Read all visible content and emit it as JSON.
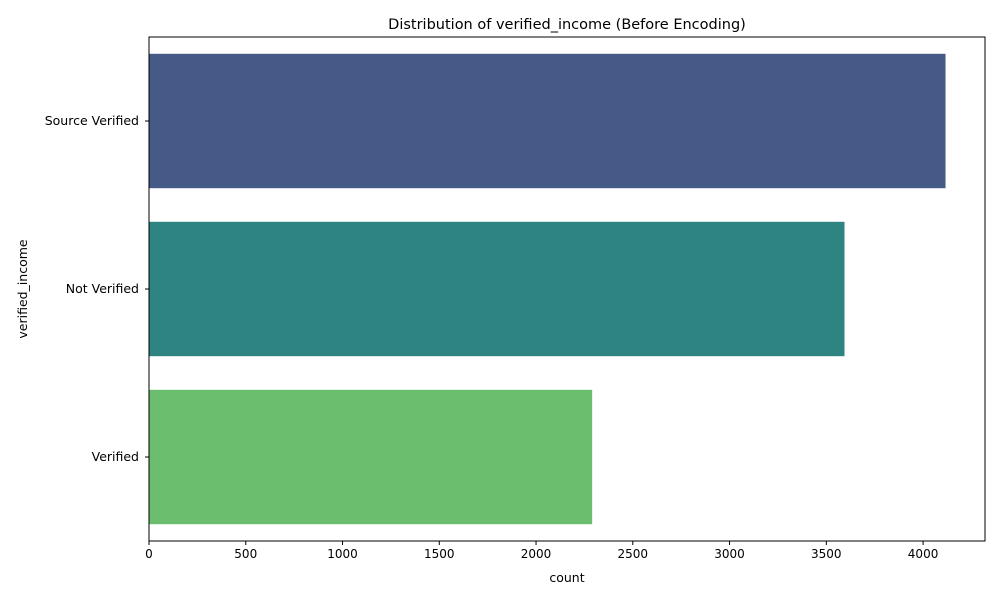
{
  "chart_data": {
    "type": "bar",
    "orientation": "horizontal",
    "title": "Distribution of verified_income (Before Encoding)",
    "xlabel": "count",
    "ylabel": "verified_income",
    "categories": [
      "Source Verified",
      "Not Verified",
      "Verified"
    ],
    "values": [
      4116,
      3594,
      2290
    ],
    "colors": [
      "#455a87",
      "#2e8480",
      "#6cbe6f"
    ],
    "xlim": [
      0,
      4320
    ],
    "xticks": [
      0,
      500,
      1000,
      1500,
      2000,
      2500,
      3000,
      3500,
      4000
    ],
    "grid": false,
    "legend": "none"
  }
}
